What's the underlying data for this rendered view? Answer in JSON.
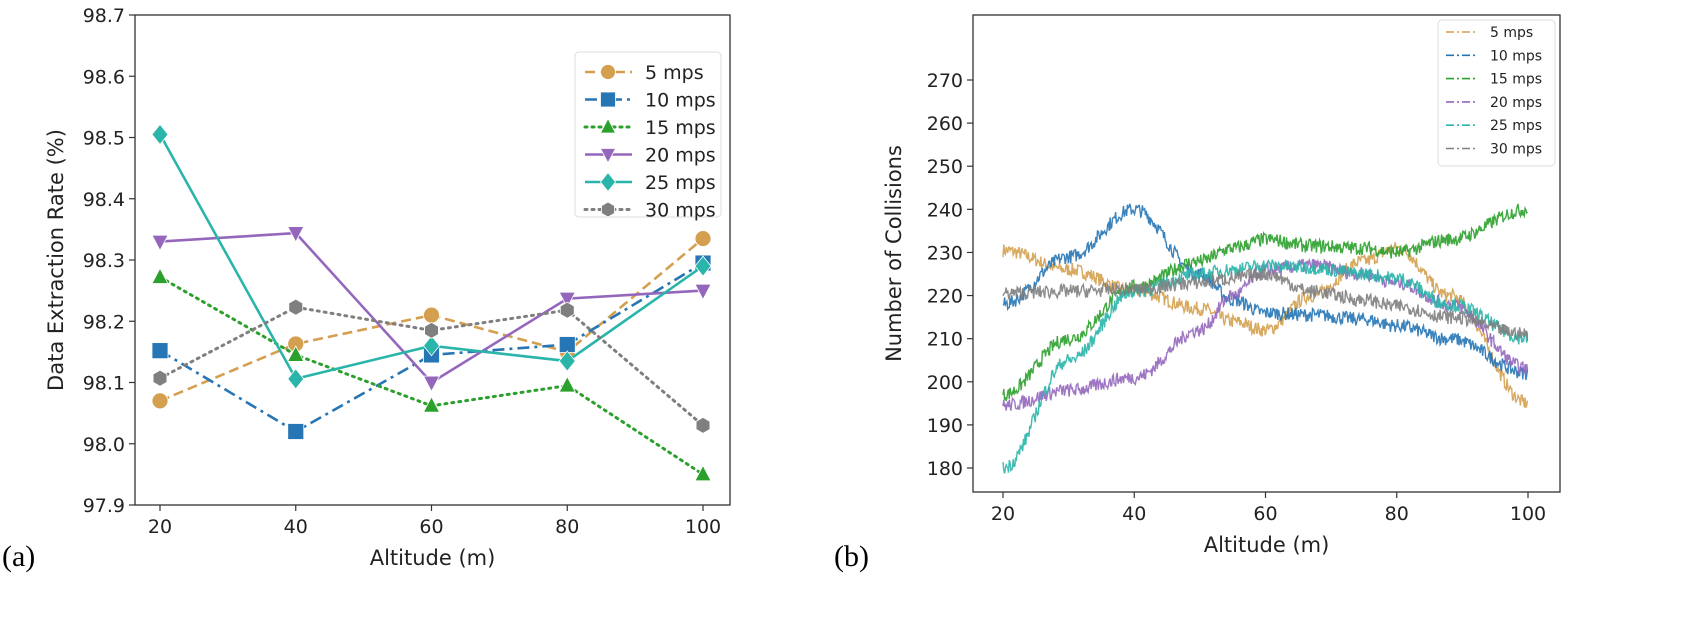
{
  "chart_data": [
    {
      "type": "line",
      "panel_label": "(a)",
      "title": "",
      "xlabel": "Altitude (m)",
      "ylabel": "Data Extraction Rate (%)",
      "x": [
        20,
        40,
        60,
        80,
        100
      ],
      "xticks": [
        "20",
        "40",
        "60",
        "80",
        "100"
      ],
      "xlim": [
        16,
        105
      ],
      "ylim": [
        97.9,
        98.7
      ],
      "yticks": [
        "97.9",
        "98.0",
        "98.1",
        "98.2",
        "98.3",
        "98.4",
        "98.5",
        "98.6",
        "98.7"
      ],
      "legend_position": "top-right",
      "grid": false,
      "series": [
        {
          "name": "5 mps",
          "color": "#d4a04f",
          "marker": "circle",
          "dash": "dashed",
          "values": [
            98.07,
            98.163,
            98.21,
            98.15,
            98.335
          ]
        },
        {
          "name": "10 mps",
          "color": "#2675b5",
          "marker": "square",
          "dash": "dashdot",
          "values": [
            98.152,
            98.02,
            98.145,
            98.162,
            98.295
          ]
        },
        {
          "name": "15 mps",
          "color": "#2ca02c",
          "marker": "triangle-up",
          "dash": "dotted",
          "values": [
            98.272,
            98.145,
            98.062,
            98.095,
            97.95
          ]
        },
        {
          "name": "20 mps",
          "color": "#9467bd",
          "marker": "triangle-down",
          "dash": "solid",
          "values": [
            98.33,
            98.344,
            98.1,
            98.237,
            98.25
          ]
        },
        {
          "name": "25 mps",
          "color": "#2ab5aa",
          "marker": "diamond",
          "dash": "solid",
          "values": [
            98.505,
            98.106,
            98.16,
            98.135,
            98.29
          ]
        },
        {
          "name": "30 mps",
          "color": "#7f7f7f",
          "marker": "hexagon",
          "dash": "dotted",
          "values": [
            98.107,
            98.223,
            98.185,
            98.218,
            98.03
          ]
        }
      ]
    },
    {
      "type": "line",
      "panel_label": "(b)",
      "title": "",
      "xlabel": "Altitude (m)",
      "ylabel": "Number of Collisions",
      "x": [
        20,
        30,
        40,
        50,
        55,
        60,
        67,
        75,
        80,
        88,
        100
      ],
      "xticks": [
        "20",
        "40",
        "60",
        "80",
        "100"
      ],
      "xlim": [
        16,
        103
      ],
      "ylim": [
        174,
        279
      ],
      "yticks": [
        "180",
        "190",
        "200",
        "210",
        "220",
        "230",
        "240",
        "250",
        "260",
        "270"
      ],
      "legend_position": "top-right",
      "grid": false,
      "noisy": true,
      "series": [
        {
          "name": "5 mps",
          "color": "#d4a04f",
          "values": [
            230.5,
            226,
            221,
            217,
            214,
            212,
            220,
            228,
            231,
            220,
            195
          ]
        },
        {
          "name": "10 mps",
          "color": "#2675b5",
          "values": [
            218,
            229,
            240,
            225,
            219,
            216,
            215.5,
            214.5,
            213,
            210,
            202
          ]
        },
        {
          "name": "15 mps",
          "color": "#2ca02c",
          "values": [
            197,
            210,
            222,
            228,
            231,
            233,
            231.5,
            231,
            230,
            233,
            240
          ]
        },
        {
          "name": "20 mps",
          "color": "#9467bd",
          "values": [
            194.5,
            198,
            201,
            212,
            220,
            226,
            227,
            225,
            223,
            218,
            203
          ]
        },
        {
          "name": "25 mps",
          "color": "#2ab5aa",
          "values": [
            180,
            205,
            221,
            225,
            226,
            227,
            226.5,
            225,
            224,
            218,
            210
          ]
        },
        {
          "name": "30 mps",
          "color": "#7f7f7f",
          "values": [
            220.5,
            221,
            221.5,
            223,
            224,
            225,
            221,
            219,
            217.5,
            215,
            211
          ]
        }
      ]
    }
  ]
}
